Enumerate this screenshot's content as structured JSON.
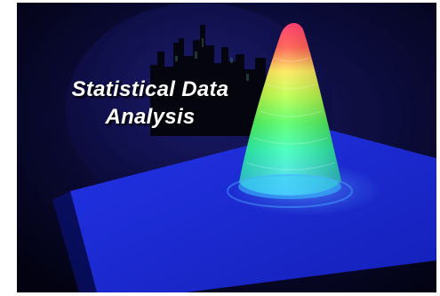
{
  "image": {
    "title_line1": "Statistical Data",
    "title_line2": "Analysis",
    "background_color": "#0a0a2e",
    "plane_color": "#1a2be0",
    "cone_colors": [
      "#ff1a4a",
      "#ffe84a",
      "#7aff3a",
      "#2affb0",
      "#3ad9ff"
    ]
  }
}
